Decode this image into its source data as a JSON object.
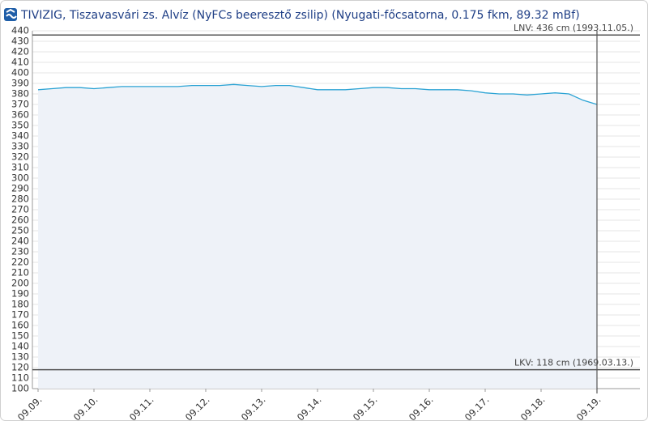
{
  "chart_data": {
    "type": "line",
    "title": "TIVIZIG, Tiszavasvári zs. Alvíz (NyFCs beeresztő zsilip) (Nyugati-főcsatorna, 0.175 fkm, 89.32 mBf)",
    "categories": [
      "09.09.",
      null,
      null,
      null,
      "09.10.",
      null,
      null,
      null,
      "09.11.",
      null,
      null,
      null,
      "09.12.",
      null,
      null,
      null,
      "09.13.",
      null,
      null,
      null,
      "09.14.",
      null,
      null,
      null,
      "09.15.",
      null,
      null,
      null,
      "09.16.",
      null,
      null,
      null,
      "09.17.",
      null,
      null,
      null,
      "09.18.",
      null,
      null,
      null,
      "09.19."
    ],
    "series": [
      {
        "color": "#2ba3d4",
        "values": [
          384,
          385,
          386,
          386,
          385,
          386,
          387,
          387,
          387,
          387,
          387,
          388,
          388,
          388,
          389,
          388,
          387,
          388,
          388,
          386,
          384,
          384,
          384,
          385,
          386,
          386,
          385,
          385,
          384,
          384,
          384,
          383,
          381,
          380,
          380,
          379,
          380,
          381,
          380,
          374,
          370
        ]
      }
    ],
    "ylim": [
      100,
      440
    ],
    "yticks": [
      100,
      110,
      120,
      130,
      140,
      150,
      160,
      170,
      180,
      190,
      200,
      210,
      220,
      230,
      240,
      250,
      260,
      270,
      280,
      290,
      300,
      310,
      320,
      330,
      340,
      350,
      360,
      370,
      380,
      390,
      400,
      410,
      420,
      430,
      440
    ],
    "grid": true,
    "reference_lines": [
      {
        "label": "LNV: 436 cm (1993.11.05.)",
        "value": 436
      },
      {
        "label": "LKV: 118 cm (1969.03.13.)",
        "value": 118
      }
    ]
  }
}
